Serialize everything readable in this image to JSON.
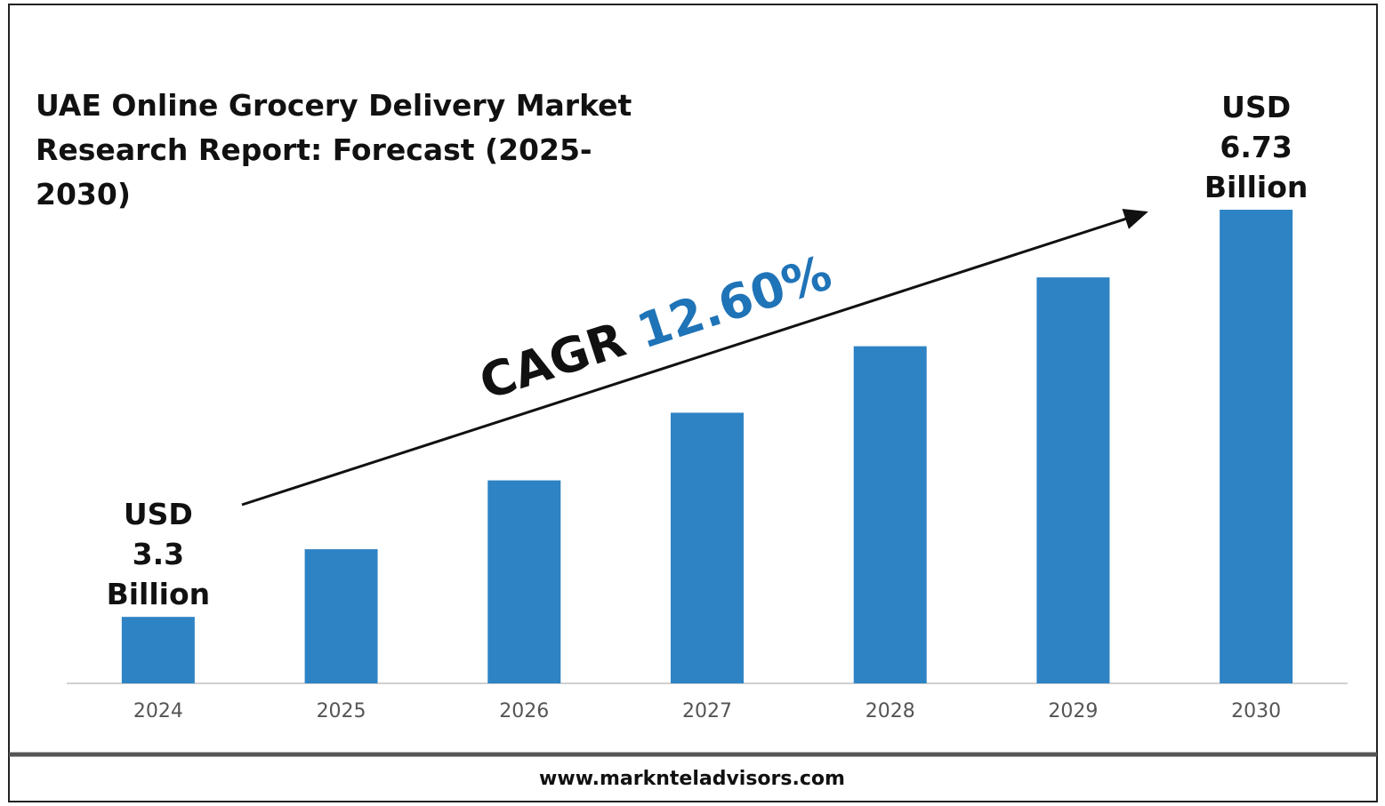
{
  "chart_data": {
    "type": "bar",
    "title": "UAE Online Grocery Delivery Market Research Report: Forecast (2025-2030)",
    "categories": [
      "2024",
      "2025",
      "2026",
      "2027",
      "2028",
      "2029",
      "2030"
    ],
    "values": [
      3.3,
      3.87,
      4.45,
      5.02,
      5.58,
      6.16,
      6.73
    ],
    "value_labels": [
      "USD 3.3 Billion",
      null,
      null,
      null,
      null,
      null,
      "USD 6.73 Billion"
    ],
    "color": "#2e83c4",
    "ylim": [
      2.74,
      6.73
    ],
    "cagr_label": "CAGR",
    "cagr_value": "12.60%",
    "cagr_color": "#1f73b7",
    "source": "www.marknteladvisors.com"
  }
}
